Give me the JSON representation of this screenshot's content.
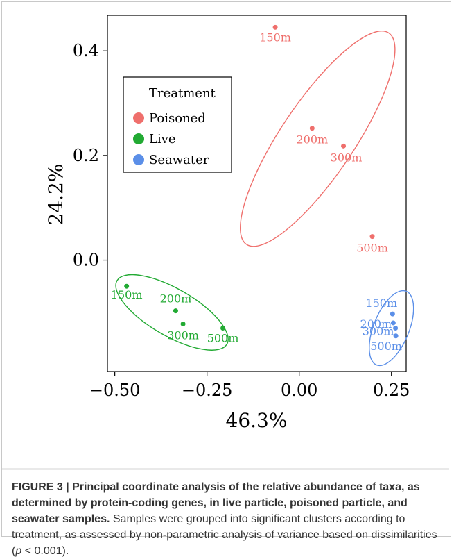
{
  "chart_data": {
    "type": "scatter",
    "xlabel": "46.3%",
    "ylabel": "24.2%",
    "xlim": [
      -0.52,
      0.29
    ],
    "ylim": [
      -0.213,
      0.468
    ],
    "x_ticks": [
      -0.5,
      -0.25,
      0.0,
      0.25
    ],
    "x_tick_labels": [
      "−0.50",
      "−0.25",
      "0.00",
      "0.25"
    ],
    "y_ticks": [
      0.0,
      0.2,
      0.4
    ],
    "y_tick_labels": [
      "0.0",
      "0.2",
      "0.4"
    ],
    "grid": false,
    "legend": {
      "title": "Treatment",
      "position": "upper-left"
    },
    "series": [
      {
        "name": "Poisoned",
        "color": "#ef6f6c",
        "points": [
          {
            "label": "150m",
            "x": -0.065,
            "y": 0.445
          },
          {
            "label": "200m",
            "x": 0.035,
            "y": 0.252
          },
          {
            "label": "300m",
            "x": 0.12,
            "y": 0.218
          },
          {
            "label": "500m",
            "x": 0.198,
            "y": 0.045
          }
        ],
        "ellipse": {
          "cx": 0.05,
          "cy": 0.232,
          "rx": 0.345,
          "ry": 0.07,
          "angle_deg": -56
        }
      },
      {
        "name": "Live",
        "color": "#22aa33",
        "points": [
          {
            "label": "150m",
            "x": -0.468,
            "y": -0.05
          },
          {
            "label": "200m",
            "x": -0.335,
            "y": -0.097
          },
          {
            "label": "300m",
            "x": -0.315,
            "y": -0.122
          },
          {
            "label": "500m",
            "x": -0.207,
            "y": -0.13
          }
        ],
        "ellipse": {
          "cx": -0.345,
          "cy": -0.1,
          "rx": 0.172,
          "ry": 0.045,
          "angle_deg": 30
        }
      },
      {
        "name": "Seawater",
        "color": "#5b8fe8",
        "points": [
          {
            "label": "150m",
            "x": 0.253,
            "y": -0.103
          },
          {
            "label": "200m",
            "x": 0.255,
            "y": -0.12
          },
          {
            "label": "300m",
            "x": 0.261,
            "y": -0.13
          },
          {
            "label": "500m",
            "x": 0.262,
            "y": -0.145
          }
        ],
        "ellipse": {
          "cx": 0.25,
          "cy": -0.13,
          "rx": 0.048,
          "ry": 0.076,
          "angle_deg": 22
        }
      }
    ]
  },
  "caption": {
    "bold": "FIGURE 3 | Principal coordinate analysis of the relative abundance of taxa, as determined by protein-coding genes, in live particle, poisoned particle, and seawater samples.",
    "text_before_p": " Samples were grouped into significant clusters according to treatment, as assessed by non-parametric analysis of variance based on dissimilarities (",
    "p_symbol": "p",
    "text_after_p": " < 0.001)."
  }
}
